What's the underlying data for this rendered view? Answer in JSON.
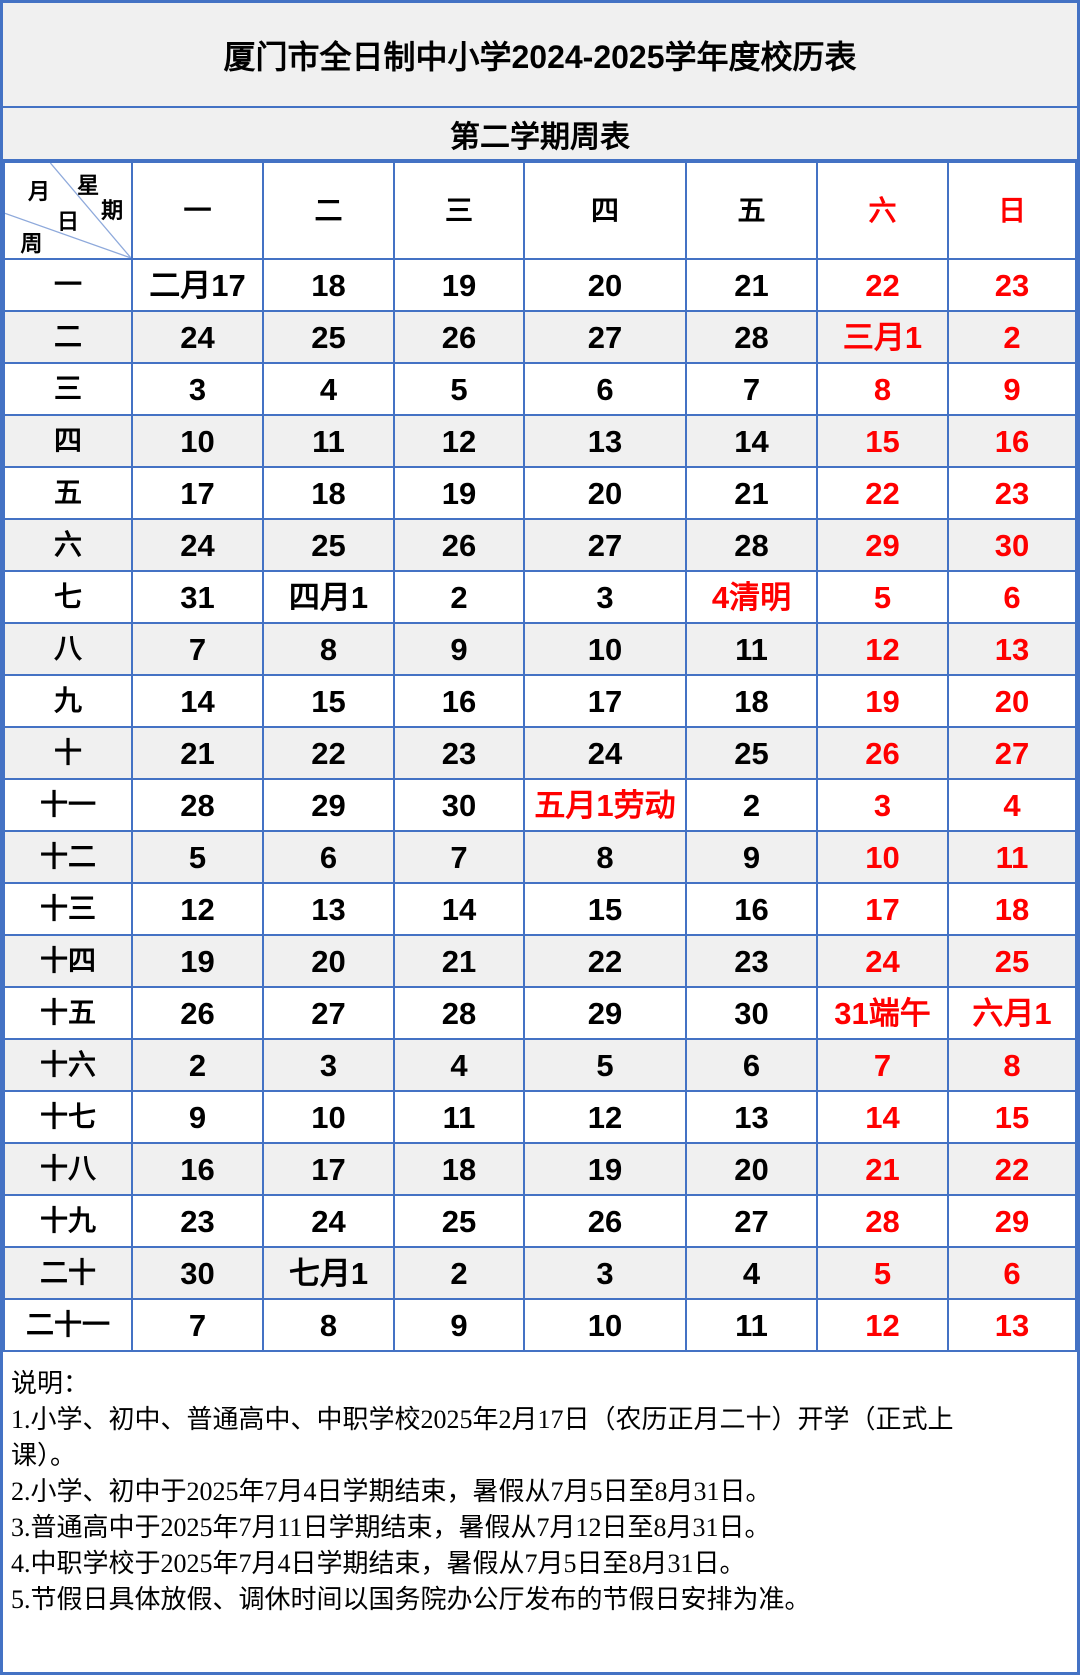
{
  "title": "厦门市全日制中小学2024-2025学年度校历表",
  "subtitle": "第二学期周表",
  "colors": {
    "border_blue": "#4472C4",
    "diagonal_line": "#8EA9DB",
    "holiday_red": "#FF0000",
    "alt_row_gray": "#F0F0F0",
    "text_black": "#000000",
    "cell_white": "#FFFFFF"
  },
  "calendar": {
    "corner": {
      "weekday_label": "星期",
      "month_label": "月",
      "day_label": "日",
      "week_label": "周"
    },
    "day_headers": [
      {
        "key": "mon",
        "label": "一",
        "red": false
      },
      {
        "key": "tue",
        "label": "二",
        "red": false
      },
      {
        "key": "wed",
        "label": "三",
        "red": false
      },
      {
        "key": "thu",
        "label": "四",
        "red": false
      },
      {
        "key": "fri",
        "label": "五",
        "red": false
      },
      {
        "key": "sat",
        "label": "六",
        "red": true
      },
      {
        "key": "sun",
        "label": "日",
        "red": true
      }
    ],
    "weeks": [
      {
        "label": "一",
        "days": [
          {
            "text": "二月17",
            "red": false
          },
          {
            "text": "18",
            "red": false
          },
          {
            "text": "19",
            "red": false
          },
          {
            "text": "20",
            "red": false
          },
          {
            "text": "21",
            "red": false
          },
          {
            "text": "22",
            "red": true
          },
          {
            "text": "23",
            "red": true
          }
        ]
      },
      {
        "label": "二",
        "days": [
          {
            "text": "24",
            "red": false
          },
          {
            "text": "25",
            "red": false
          },
          {
            "text": "26",
            "red": false
          },
          {
            "text": "27",
            "red": false
          },
          {
            "text": "28",
            "red": false
          },
          {
            "text": "三月1",
            "red": true
          },
          {
            "text": "2",
            "red": true
          }
        ]
      },
      {
        "label": "三",
        "days": [
          {
            "text": "3",
            "red": false
          },
          {
            "text": "4",
            "red": false
          },
          {
            "text": "5",
            "red": false
          },
          {
            "text": "6",
            "red": false
          },
          {
            "text": "7",
            "red": false
          },
          {
            "text": "8",
            "red": true
          },
          {
            "text": "9",
            "red": true
          }
        ]
      },
      {
        "label": "四",
        "days": [
          {
            "text": "10",
            "red": false
          },
          {
            "text": "11",
            "red": false
          },
          {
            "text": "12",
            "red": false
          },
          {
            "text": "13",
            "red": false
          },
          {
            "text": "14",
            "red": false
          },
          {
            "text": "15",
            "red": true
          },
          {
            "text": "16",
            "red": true
          }
        ]
      },
      {
        "label": "五",
        "days": [
          {
            "text": "17",
            "red": false
          },
          {
            "text": "18",
            "red": false
          },
          {
            "text": "19",
            "red": false
          },
          {
            "text": "20",
            "red": false
          },
          {
            "text": "21",
            "red": false
          },
          {
            "text": "22",
            "red": true
          },
          {
            "text": "23",
            "red": true
          }
        ]
      },
      {
        "label": "六",
        "days": [
          {
            "text": "24",
            "red": false
          },
          {
            "text": "25",
            "red": false
          },
          {
            "text": "26",
            "red": false
          },
          {
            "text": "27",
            "red": false
          },
          {
            "text": "28",
            "red": false
          },
          {
            "text": "29",
            "red": true
          },
          {
            "text": "30",
            "red": true
          }
        ]
      },
      {
        "label": "七",
        "days": [
          {
            "text": "31",
            "red": false
          },
          {
            "text": "四月1",
            "red": false
          },
          {
            "text": "2",
            "red": false
          },
          {
            "text": "3",
            "red": false
          },
          {
            "text": "4清明",
            "red": true
          },
          {
            "text": "5",
            "red": true
          },
          {
            "text": "6",
            "red": true
          }
        ]
      },
      {
        "label": "八",
        "days": [
          {
            "text": "7",
            "red": false
          },
          {
            "text": "8",
            "red": false
          },
          {
            "text": "9",
            "red": false
          },
          {
            "text": "10",
            "red": false
          },
          {
            "text": "11",
            "red": false
          },
          {
            "text": "12",
            "red": true
          },
          {
            "text": "13",
            "red": true
          }
        ]
      },
      {
        "label": "九",
        "days": [
          {
            "text": "14",
            "red": false
          },
          {
            "text": "15",
            "red": false
          },
          {
            "text": "16",
            "red": false
          },
          {
            "text": "17",
            "red": false
          },
          {
            "text": "18",
            "red": false
          },
          {
            "text": "19",
            "red": true
          },
          {
            "text": "20",
            "red": true
          }
        ]
      },
      {
        "label": "十",
        "days": [
          {
            "text": "21",
            "red": false
          },
          {
            "text": "22",
            "red": false
          },
          {
            "text": "23",
            "red": false
          },
          {
            "text": "24",
            "red": false
          },
          {
            "text": "25",
            "red": false
          },
          {
            "text": "26",
            "red": true
          },
          {
            "text": "27",
            "red": true
          }
        ]
      },
      {
        "label": "十一",
        "days": [
          {
            "text": "28",
            "red": false
          },
          {
            "text": "29",
            "red": false
          },
          {
            "text": "30",
            "red": false
          },
          {
            "text": "五月1劳动",
            "red": true
          },
          {
            "text": "2",
            "red": false
          },
          {
            "text": "3",
            "red": true
          },
          {
            "text": "4",
            "red": true
          }
        ]
      },
      {
        "label": "十二",
        "days": [
          {
            "text": "5",
            "red": false
          },
          {
            "text": "6",
            "red": false
          },
          {
            "text": "7",
            "red": false
          },
          {
            "text": "8",
            "red": false
          },
          {
            "text": "9",
            "red": false
          },
          {
            "text": "10",
            "red": true
          },
          {
            "text": "11",
            "red": true
          }
        ]
      },
      {
        "label": "十三",
        "days": [
          {
            "text": "12",
            "red": false
          },
          {
            "text": "13",
            "red": false
          },
          {
            "text": "14",
            "red": false
          },
          {
            "text": "15",
            "red": false
          },
          {
            "text": "16",
            "red": false
          },
          {
            "text": "17",
            "red": true
          },
          {
            "text": "18",
            "red": true
          }
        ]
      },
      {
        "label": "十四",
        "days": [
          {
            "text": "19",
            "red": false
          },
          {
            "text": "20",
            "red": false
          },
          {
            "text": "21",
            "red": false
          },
          {
            "text": "22",
            "red": false
          },
          {
            "text": "23",
            "red": false
          },
          {
            "text": "24",
            "red": true
          },
          {
            "text": "25",
            "red": true
          }
        ]
      },
      {
        "label": "十五",
        "days": [
          {
            "text": "26",
            "red": false
          },
          {
            "text": "27",
            "red": false
          },
          {
            "text": "28",
            "red": false
          },
          {
            "text": "29",
            "red": false
          },
          {
            "text": "30",
            "red": false
          },
          {
            "text": "31端午",
            "red": true
          },
          {
            "text": "六月1",
            "red": true
          }
        ]
      },
      {
        "label": "十六",
        "days": [
          {
            "text": "2",
            "red": false
          },
          {
            "text": "3",
            "red": false
          },
          {
            "text": "4",
            "red": false
          },
          {
            "text": "5",
            "red": false
          },
          {
            "text": "6",
            "red": false
          },
          {
            "text": "7",
            "red": true
          },
          {
            "text": "8",
            "red": true
          }
        ]
      },
      {
        "label": "十七",
        "days": [
          {
            "text": "9",
            "red": false
          },
          {
            "text": "10",
            "red": false
          },
          {
            "text": "11",
            "red": false
          },
          {
            "text": "12",
            "red": false
          },
          {
            "text": "13",
            "red": false
          },
          {
            "text": "14",
            "red": true
          },
          {
            "text": "15",
            "red": true
          }
        ]
      },
      {
        "label": "十八",
        "days": [
          {
            "text": "16",
            "red": false
          },
          {
            "text": "17",
            "red": false
          },
          {
            "text": "18",
            "red": false
          },
          {
            "text": "19",
            "red": false
          },
          {
            "text": "20",
            "red": false
          },
          {
            "text": "21",
            "red": true
          },
          {
            "text": "22",
            "red": true
          }
        ]
      },
      {
        "label": "十九",
        "days": [
          {
            "text": "23",
            "red": false
          },
          {
            "text": "24",
            "red": false
          },
          {
            "text": "25",
            "red": false
          },
          {
            "text": "26",
            "red": false
          },
          {
            "text": "27",
            "red": false
          },
          {
            "text": "28",
            "red": true
          },
          {
            "text": "29",
            "red": true
          }
        ]
      },
      {
        "label": "二十",
        "days": [
          {
            "text": "30",
            "red": false
          },
          {
            "text": "七月1",
            "red": false
          },
          {
            "text": "2",
            "red": false
          },
          {
            "text": "3",
            "red": false
          },
          {
            "text": "4",
            "red": false
          },
          {
            "text": "5",
            "red": true
          },
          {
            "text": "6",
            "red": true
          }
        ]
      },
      {
        "label": "二十一",
        "days": [
          {
            "text": "7",
            "red": false
          },
          {
            "text": "8",
            "red": false
          },
          {
            "text": "9",
            "red": false
          },
          {
            "text": "10",
            "red": false
          },
          {
            "text": "11",
            "red": false
          },
          {
            "text": "12",
            "red": true
          },
          {
            "text": "13",
            "red": true
          }
        ]
      }
    ]
  },
  "notes": {
    "heading": "说明：",
    "items": [
      "1.小学、初中、普通高中、中职学校2025年2月17日（农历正月二十）开学（正式上\n课）。",
      "2.小学、初中于2025年7月4日学期结束，暑假从7月5日至8月31日。",
      "3.普通高中于2025年7月11日学期结束，暑假从7月12日至8月31日。",
      "4.中职学校于2025年7月4日学期结束，暑假从7月5日至8月31日。",
      "5.节假日具体放假、调休时间以国务院办公厅发布的节假日安排为准。"
    ]
  }
}
